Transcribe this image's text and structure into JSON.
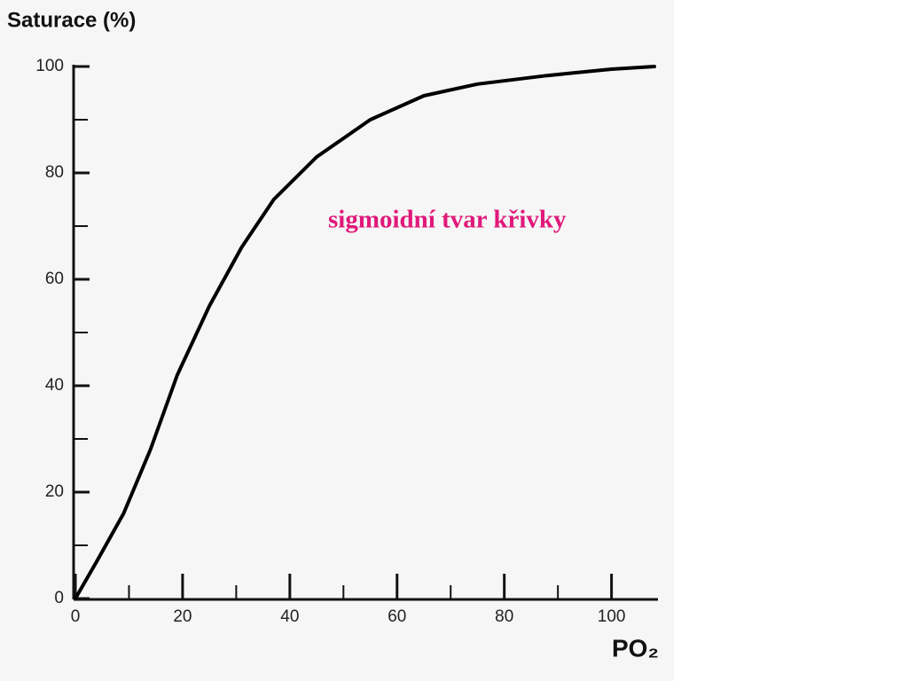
{
  "chart_data": {
    "type": "line",
    "title": "Saturace (%)",
    "x_label": "PO₂",
    "annotation": "sigmoidní tvar křivky",
    "x": [
      0,
      4,
      9,
      14,
      19,
      25,
      31,
      37,
      45,
      55,
      65,
      75,
      88,
      100,
      108
    ],
    "values": [
      0,
      7,
      16,
      28,
      42,
      55,
      66,
      75,
      83,
      90,
      94.5,
      96.7,
      98.3,
      99.5,
      100
    ],
    "color": "#000000",
    "annotation_color": "#e0197a",
    "xlim": [
      0,
      108
    ],
    "ylim": [
      0,
      100
    ],
    "xticks": [
      0,
      20,
      40,
      60,
      80,
      100
    ],
    "yticks": [
      0,
      20,
      40,
      60,
      80,
      100
    ],
    "xminorticks": [
      10,
      30,
      50,
      70,
      90
    ],
    "yminorticks": [
      10,
      30,
      50,
      70,
      90
    ]
  }
}
